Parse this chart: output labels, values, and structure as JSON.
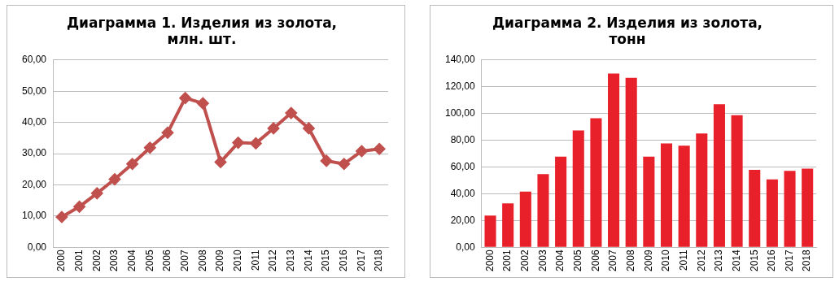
{
  "chart_data": [
    {
      "type": "line",
      "title": "Диаграмма 1. Изделия из золота,\nмлн. шт.",
      "categories": [
        "2000",
        "2001",
        "2002",
        "2003",
        "2004",
        "2005",
        "2006",
        "2007",
        "2008",
        "2009",
        "2010",
        "2011",
        "2012",
        "2013",
        "2014",
        "2015",
        "2016",
        "2017",
        "2018"
      ],
      "series": [
        {
          "color": "#c0504d",
          "values": [
            9.7,
            13,
            17.3,
            21.8,
            26.7,
            31.9,
            36.7,
            47.8,
            46.1,
            27.3,
            33.5,
            33.3,
            38.1,
            43,
            38.1,
            27.7,
            26.7,
            30.8,
            31.5
          ]
        }
      ],
      "ylim": [
        0,
        60
      ],
      "yticks": [
        {
          "value": 0,
          "label": "0,00"
        },
        {
          "value": 10,
          "label": "10,00"
        },
        {
          "value": 20,
          "label": "20,00"
        },
        {
          "value": 30,
          "label": "30,00"
        },
        {
          "value": 40,
          "label": "40,00"
        },
        {
          "value": 50,
          "label": "50,00"
        },
        {
          "value": 60,
          "label": "60,00"
        }
      ],
      "grid": "y",
      "marker": "diamond",
      "line_style": "solid"
    },
    {
      "type": "bar",
      "title": "Диаграмма 2. Изделия из золота,\nтонн",
      "categories": [
        "2000",
        "2001",
        "2002",
        "2003",
        "2004",
        "2005",
        "2006",
        "2007",
        "2008",
        "2009",
        "2010",
        "2011",
        "2012",
        "2013",
        "2014",
        "2015",
        "2016",
        "2017",
        "2018"
      ],
      "series": [
        {
          "color": "#e8202a",
          "values": [
            23.7,
            32.8,
            41.6,
            54.7,
            67.7,
            87.4,
            96.5,
            129.8,
            126.7,
            67.7,
            77.7,
            76,
            85.1,
            107,
            98.8,
            57.9,
            50.7,
            57.2,
            58.8
          ]
        }
      ],
      "ylim": [
        0,
        140
      ],
      "yticks": [
        {
          "value": 0,
          "label": "0,00"
        },
        {
          "value": 20,
          "label": "20,00"
        },
        {
          "value": 40,
          "label": "40,00"
        },
        {
          "value": 60,
          "label": "60,00"
        },
        {
          "value": 80,
          "label": "80,00"
        },
        {
          "value": 100,
          "label": "100,00"
        },
        {
          "value": 120,
          "label": "120,00"
        },
        {
          "value": 140,
          "label": "140,00"
        }
      ],
      "grid": "y"
    }
  ]
}
